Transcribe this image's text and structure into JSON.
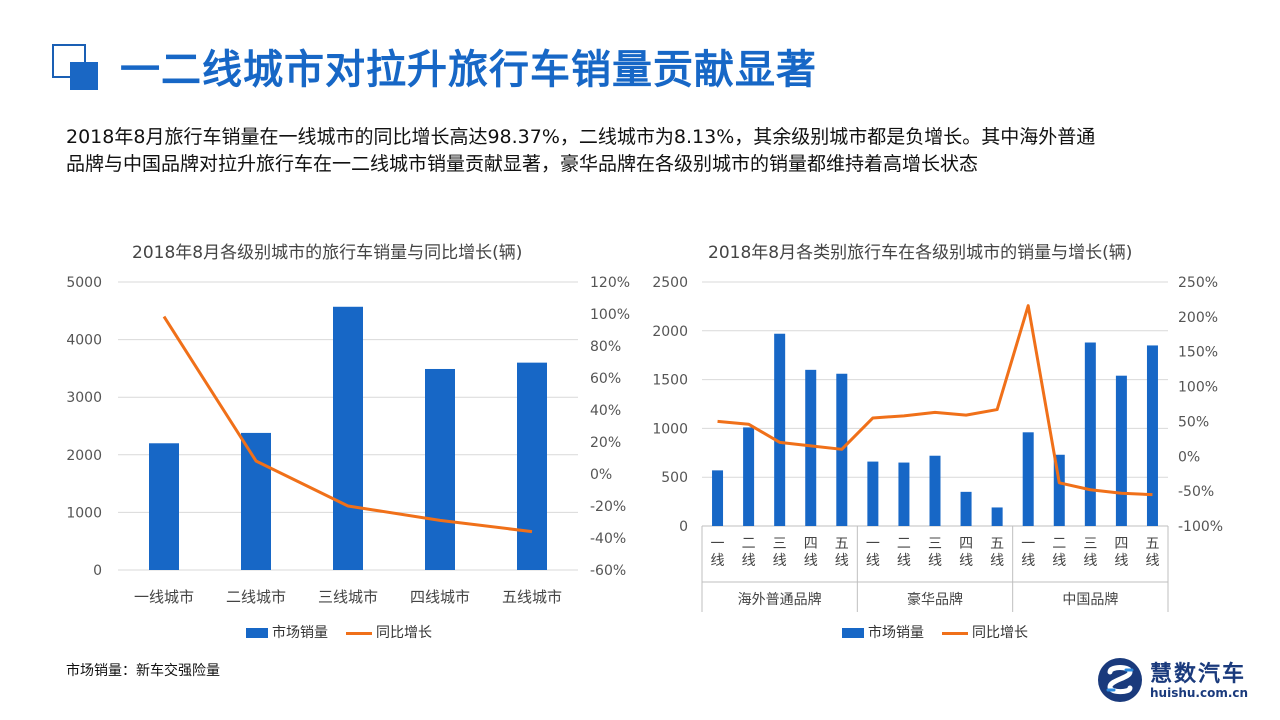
{
  "header": {
    "title": "一二线城市对拉升旅行车销量贡献显著"
  },
  "summary": {
    "line1": "2018年8月旅行车销量在一线城市的同比增长高达98.37%，二线城市为8.13%，其余级别城市都是负增长。其中海外普通",
    "line2": "品牌与中国品牌对拉升旅行车在一二线城市销量贡献显著，豪华品牌在各级别城市的销量都维持着高增长状态"
  },
  "footnote": "市场销量：新车交强险量",
  "logo": {
    "name": "慧数汽车",
    "url": "huishu.com.cn"
  },
  "colors": {
    "bar": "#1767c6",
    "line": "#f07019",
    "title": "#1767c6",
    "grid": "#d9d9d9"
  },
  "chart_data": [
    {
      "type": "bar",
      "title": "2018年8月各级别城市的旅行车销量与同比增长(辆)",
      "categories": [
        "一线城市",
        "二线城市",
        "三线城市",
        "四线城市",
        "五线城市"
      ],
      "series": [
        {
          "name": "市场销量",
          "type": "bar",
          "axis": "left",
          "values": [
            2200,
            2380,
            4570,
            3490,
            3600
          ]
        },
        {
          "name": "同比增长",
          "type": "line",
          "axis": "right",
          "values": [
            98.37,
            8.13,
            -20,
            -29,
            -36
          ]
        }
      ],
      "y_left": {
        "min": 0,
        "max": 5000,
        "ticks": [
          "0",
          "1000",
          "2000",
          "3000",
          "4000",
          "5000"
        ]
      },
      "y_right": {
        "min": -60,
        "max": 120,
        "ticks": [
          "-60%",
          "-40%",
          "-20%",
          "0%",
          "20%",
          "40%",
          "60%",
          "80%",
          "100%",
          "120%"
        ]
      },
      "grid": true,
      "legend": "bottom"
    },
    {
      "type": "bar",
      "title": "2018年8月各类别旅行车在各级别城市的销量与增长(辆)",
      "groups": [
        "海外普通品牌",
        "豪华品牌",
        "中国品牌"
      ],
      "categories": [
        "一线",
        "二线",
        "三线",
        "四线",
        "五线"
      ],
      "series": [
        {
          "name": "市场销量",
          "type": "bar",
          "axis": "left",
          "values": [
            [
              570,
              1010,
              1970,
              1600,
              1560
            ],
            [
              660,
              650,
              720,
              350,
              190
            ],
            [
              960,
              730,
              1880,
              1540,
              1850
            ]
          ]
        },
        {
          "name": "同比增长",
          "type": "line",
          "axis": "right",
          "values": [
            [
              50,
              46,
              20,
              15,
              10
            ],
            [
              55,
              58,
              63,
              59,
              67
            ],
            [
              216,
              -38,
              -48,
              -53,
              -55
            ]
          ]
        }
      ],
      "y_left": {
        "min": 0,
        "max": 2500,
        "ticks": [
          "0",
          "500",
          "1000",
          "1500",
          "2000",
          "2500"
        ]
      },
      "y_right": {
        "min": -100,
        "max": 250,
        "ticks": [
          "-100%",
          "-50%",
          "0%",
          "50%",
          "100%",
          "150%",
          "200%",
          "250%"
        ]
      },
      "grid": true,
      "legend": "bottom"
    }
  ]
}
